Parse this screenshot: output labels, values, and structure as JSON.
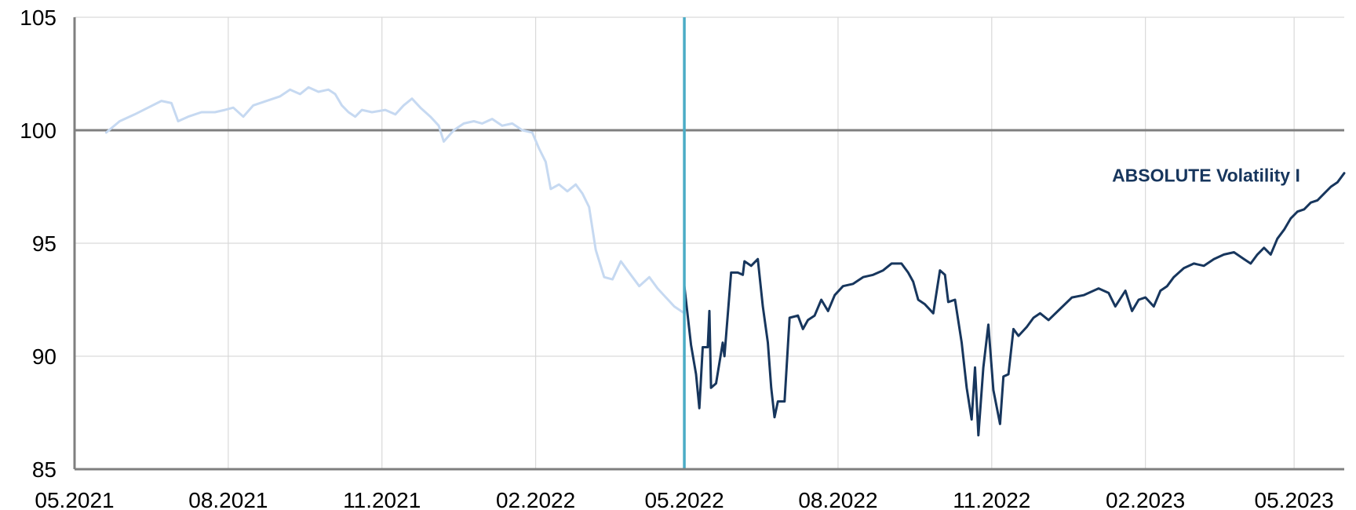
{
  "colors": {
    "background": "#ffffff",
    "grid": "#d9d9d9",
    "axis": "#7f7f7f",
    "reference_line": "#7f7f7f",
    "marker_line": "#4bacc6",
    "history_series": "#c6d9f1",
    "main_series": "#17365d",
    "label": "#17365d"
  },
  "chart_data": {
    "type": "line",
    "title": "",
    "xlabel": "",
    "ylabel": "",
    "xlim": [
      "2021-05-01",
      "2023-05-31"
    ],
    "ylim": [
      85,
      105
    ],
    "x_ticks": [
      "2021-05-01",
      "2021-08-01",
      "2021-11-01",
      "2022-02-01",
      "2022-05-01",
      "2022-08-01",
      "2022-11-01",
      "2023-02-01",
      "2023-05-01"
    ],
    "x_tick_labels": [
      "05.2021",
      "08.2021",
      "11.2021",
      "02.2022",
      "05.2022",
      "08.2022",
      "11.2022",
      "02.2023",
      "05.2023"
    ],
    "y_ticks": [
      85,
      90,
      95,
      100,
      105
    ],
    "y_tick_labels": [
      "85",
      "90",
      "95",
      "100",
      "105"
    ],
    "grid": true,
    "reference_line": {
      "y": 100
    },
    "marker_line": {
      "x": "2022-05-01"
    },
    "series": [
      {
        "name": "",
        "color": "#c6d9f1",
        "points": [
          [
            "2021-05-20",
            99.9
          ],
          [
            "2021-05-28",
            100.4
          ],
          [
            "2021-06-06",
            100.7
          ],
          [
            "2021-06-14",
            101.0
          ],
          [
            "2021-06-22",
            101.3
          ],
          [
            "2021-06-28",
            101.2
          ],
          [
            "2021-07-02",
            100.4
          ],
          [
            "2021-07-08",
            100.6
          ],
          [
            "2021-07-16",
            100.8
          ],
          [
            "2021-07-24",
            100.8
          ],
          [
            "2021-07-30",
            100.9
          ],
          [
            "2021-08-04",
            101.0
          ],
          [
            "2021-08-10",
            100.6
          ],
          [
            "2021-08-16",
            101.1
          ],
          [
            "2021-08-24",
            101.3
          ],
          [
            "2021-09-01",
            101.5
          ],
          [
            "2021-09-07",
            101.8
          ],
          [
            "2021-09-13",
            101.6
          ],
          [
            "2021-09-18",
            101.9
          ],
          [
            "2021-09-24",
            101.7
          ],
          [
            "2021-09-30",
            101.8
          ],
          [
            "2021-10-04",
            101.6
          ],
          [
            "2021-10-08",
            101.1
          ],
          [
            "2021-10-12",
            100.8
          ],
          [
            "2021-10-16",
            100.6
          ],
          [
            "2021-10-20",
            100.9
          ],
          [
            "2021-10-26",
            100.8
          ],
          [
            "2021-11-03",
            100.9
          ],
          [
            "2021-11-09",
            100.7
          ],
          [
            "2021-11-14",
            101.1
          ],
          [
            "2021-11-19",
            101.4
          ],
          [
            "2021-11-24",
            101.0
          ],
          [
            "2021-11-30",
            100.6
          ],
          [
            "2021-12-05",
            100.2
          ],
          [
            "2021-12-08",
            99.5
          ],
          [
            "2021-12-14",
            100.0
          ],
          [
            "2021-12-20",
            100.3
          ],
          [
            "2021-12-26",
            100.4
          ],
          [
            "2021-12-31",
            100.3
          ],
          [
            "2022-01-06",
            100.5
          ],
          [
            "2022-01-12",
            100.2
          ],
          [
            "2022-01-18",
            100.3
          ],
          [
            "2022-01-24",
            100.0
          ],
          [
            "2022-01-30",
            99.9
          ],
          [
            "2022-02-03",
            99.2
          ],
          [
            "2022-02-07",
            98.6
          ],
          [
            "2022-02-10",
            97.4
          ],
          [
            "2022-02-15",
            97.6
          ],
          [
            "2022-02-20",
            97.3
          ],
          [
            "2022-02-25",
            97.6
          ],
          [
            "2022-03-01",
            97.2
          ],
          [
            "2022-03-05",
            96.6
          ],
          [
            "2022-03-09",
            94.7
          ],
          [
            "2022-03-14",
            93.5
          ],
          [
            "2022-03-19",
            93.4
          ],
          [
            "2022-03-24",
            94.2
          ],
          [
            "2022-03-30",
            93.6
          ],
          [
            "2022-04-04",
            93.1
          ],
          [
            "2022-04-10",
            93.5
          ],
          [
            "2022-04-15",
            93.0
          ],
          [
            "2022-04-20",
            92.6
          ],
          [
            "2022-04-25",
            92.2
          ],
          [
            "2022-05-01",
            91.9
          ]
        ]
      },
      {
        "name": "ABSOLUTE Volatility I",
        "color": "#17365d",
        "points": [
          [
            "2022-05-01",
            93.1
          ],
          [
            "2022-05-05",
            90.5
          ],
          [
            "2022-05-08",
            89.2
          ],
          [
            "2022-05-10",
            87.7
          ],
          [
            "2022-05-12",
            90.4
          ],
          [
            "2022-05-15",
            90.4
          ],
          [
            "2022-05-16",
            92.0
          ],
          [
            "2022-05-17",
            88.6
          ],
          [
            "2022-05-20",
            88.8
          ],
          [
            "2022-05-24",
            90.6
          ],
          [
            "2022-05-25",
            90.0
          ],
          [
            "2022-05-29",
            93.7
          ],
          [
            "2022-06-02",
            93.7
          ],
          [
            "2022-06-05",
            93.6
          ],
          [
            "2022-06-06",
            94.2
          ],
          [
            "2022-06-10",
            94.0
          ],
          [
            "2022-06-14",
            94.3
          ],
          [
            "2022-06-17",
            92.2
          ],
          [
            "2022-06-20",
            90.6
          ],
          [
            "2022-06-22",
            88.6
          ],
          [
            "2022-06-24",
            87.3
          ],
          [
            "2022-06-26",
            88.0
          ],
          [
            "2022-06-30",
            88.0
          ],
          [
            "2022-07-03",
            91.7
          ],
          [
            "2022-07-08",
            91.8
          ],
          [
            "2022-07-11",
            91.2
          ],
          [
            "2022-07-14",
            91.6
          ],
          [
            "2022-07-18",
            91.8
          ],
          [
            "2022-07-22",
            92.5
          ],
          [
            "2022-07-26",
            92.0
          ],
          [
            "2022-07-30",
            92.7
          ],
          [
            "2022-08-04",
            93.1
          ],
          [
            "2022-08-10",
            93.2
          ],
          [
            "2022-08-16",
            93.5
          ],
          [
            "2022-08-22",
            93.6
          ],
          [
            "2022-08-28",
            93.8
          ],
          [
            "2022-09-02",
            94.1
          ],
          [
            "2022-09-08",
            94.1
          ],
          [
            "2022-09-12",
            93.7
          ],
          [
            "2022-09-15",
            93.3
          ],
          [
            "2022-09-18",
            92.5
          ],
          [
            "2022-09-22",
            92.3
          ],
          [
            "2022-09-27",
            91.9
          ],
          [
            "2022-10-01",
            93.8
          ],
          [
            "2022-10-04",
            93.6
          ],
          [
            "2022-10-06",
            92.4
          ],
          [
            "2022-10-10",
            92.5
          ],
          [
            "2022-10-14",
            90.6
          ],
          [
            "2022-10-17",
            88.6
          ],
          [
            "2022-10-20",
            87.2
          ],
          [
            "2022-10-22",
            89.5
          ],
          [
            "2022-10-24",
            86.5
          ],
          [
            "2022-10-27",
            89.5
          ],
          [
            "2022-10-30",
            91.4
          ],
          [
            "2022-11-02",
            88.5
          ],
          [
            "2022-11-06",
            87.0
          ],
          [
            "2022-11-08",
            89.1
          ],
          [
            "2022-11-11",
            89.2
          ],
          [
            "2022-11-14",
            91.2
          ],
          [
            "2022-11-17",
            90.9
          ],
          [
            "2022-11-22",
            91.3
          ],
          [
            "2022-11-26",
            91.7
          ],
          [
            "2022-11-30",
            91.9
          ],
          [
            "2022-12-05",
            91.6
          ],
          [
            "2022-12-12",
            92.1
          ],
          [
            "2022-12-19",
            92.6
          ],
          [
            "2022-12-26",
            92.7
          ],
          [
            "2023-01-04",
            93.0
          ],
          [
            "2023-01-10",
            92.8
          ],
          [
            "2023-01-14",
            92.2
          ],
          [
            "2023-01-20",
            92.9
          ],
          [
            "2023-01-24",
            92.0
          ],
          [
            "2023-01-28",
            92.5
          ],
          [
            "2023-02-01",
            92.6
          ],
          [
            "2023-02-06",
            92.2
          ],
          [
            "2023-02-10",
            92.9
          ],
          [
            "2023-02-14",
            93.1
          ],
          [
            "2023-02-18",
            93.5
          ],
          [
            "2023-02-24",
            93.9
          ],
          [
            "2023-03-02",
            94.1
          ],
          [
            "2023-03-08",
            94.0
          ],
          [
            "2023-03-14",
            94.3
          ],
          [
            "2023-03-20",
            94.5
          ],
          [
            "2023-03-26",
            94.6
          ],
          [
            "2023-04-01",
            94.3
          ],
          [
            "2023-04-05",
            94.1
          ],
          [
            "2023-04-09",
            94.5
          ],
          [
            "2023-04-13",
            94.8
          ],
          [
            "2023-04-17",
            94.5
          ],
          [
            "2023-04-21",
            95.2
          ],
          [
            "2023-04-25",
            95.6
          ],
          [
            "2023-04-29",
            96.1
          ],
          [
            "2023-05-03",
            96.4
          ],
          [
            "2023-05-07",
            96.5
          ],
          [
            "2023-05-11",
            96.8
          ],
          [
            "2023-05-15",
            96.9
          ],
          [
            "2023-05-19",
            97.2
          ],
          [
            "2023-05-23",
            97.5
          ],
          [
            "2023-05-27",
            97.7
          ],
          [
            "2023-05-31",
            98.1
          ]
        ]
      }
    ],
    "annotations": [
      {
        "text": "ABSOLUTE Volatility I",
        "x": "2023-01-12",
        "y": 98.0,
        "color": "#17365d"
      }
    ]
  }
}
